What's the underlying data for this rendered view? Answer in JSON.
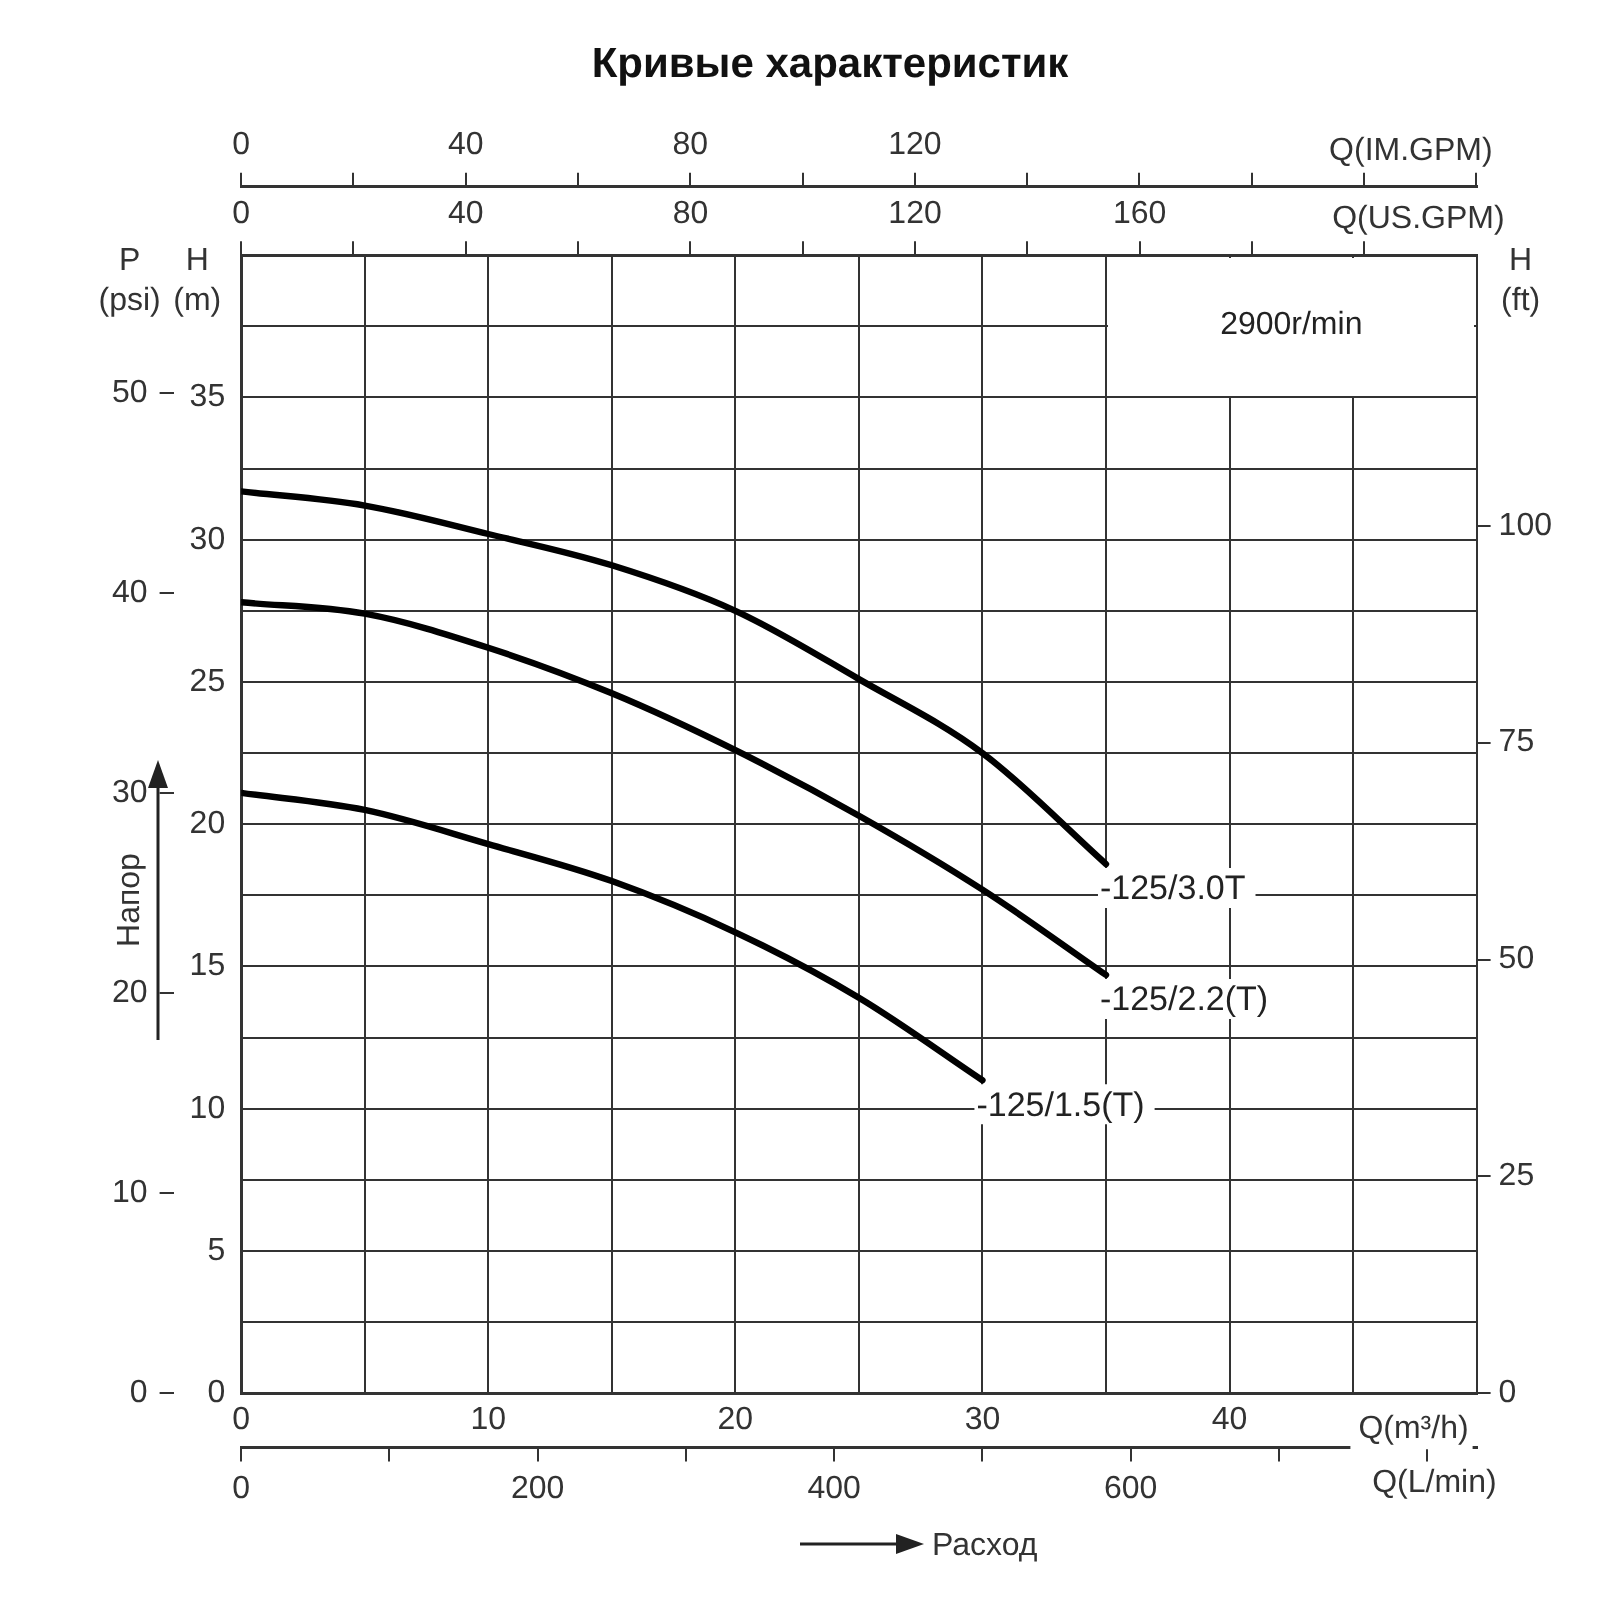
{
  "chart_data": {
    "type": "line",
    "title": "Кривые характеристик",
    "xlabel": "Q(m³/h)",
    "x2label": "Q(US.GPM)",
    "ylabel": "H\n(m)",
    "y2label": "H\n(ft)",
    "y3label": "P\n(psi)",
    "annotations": [
      "2900r/min",
      "Напор",
      "Расход",
      "Q(IM.GPM)",
      "0",
      "40",
      "80",
      "120",
      "Q(L/min)",
      "0",
      "200",
      "400",
      "600"
    ],
    "xlim": [
      0,
      50
    ],
    "xticks": [
      0,
      {
        "value": 5,
        "label": null
      },
      10,
      {
        "value": 15,
        "label": null
      },
      20,
      {
        "value": 25,
        "label": null
      },
      30,
      {
        "value": 35,
        "label": null
      },
      40,
      {
        "value": 45,
        "label": null
      },
      {
        "value": 50,
        "label": null
      }
    ],
    "x2lim": [
      0,
      220
    ],
    "x2ticks": [
      0,
      {
        "value": 20,
        "label": null
      },
      40,
      {
        "value": 60,
        "label": null
      },
      80,
      {
        "value": 100,
        "label": null
      },
      120,
      {
        "value": 140,
        "label": null
      },
      160,
      {
        "value": 180,
        "label": null
      },
      {
        "value": 200,
        "label": null
      }
    ],
    "ylim": [
      0,
      40
    ],
    "yticks": [
      0,
      {
        "value": 2.5,
        "label": null
      },
      5,
      {
        "value": 7.5,
        "label": null
      },
      10,
      {
        "value": 12.5,
        "label": null
      },
      15,
      {
        "value": 17.5,
        "label": null
      },
      20,
      {
        "value": 22.5,
        "label": null
      },
      25,
      {
        "value": 27.5,
        "label": null
      },
      30,
      {
        "value": 32.5,
        "label": null
      },
      35,
      {
        "value": 37.5,
        "label": null
      },
      {
        "value": 40,
        "label": null
      }
    ],
    "y2lim": [
      0,
      131.2
    ],
    "y2ticks": [
      0,
      25,
      50,
      75,
      100
    ],
    "y3lim": [
      0,
      56.9
    ],
    "y3ticks": [
      0,
      10,
      20,
      30,
      40,
      50
    ],
    "grid": true,
    "legend": false,
    "marker": "none",
    "line_style": "solid",
    "series": [
      {
        "name": "-125/3.0T",
        "color": "#000000",
        "x": [
          0,
          5,
          10,
          15,
          20,
          25,
          30,
          35
        ],
        "values": [
          31.7,
          31.2,
          30.2,
          29.1,
          27.5,
          25.1,
          22.5,
          18.6
        ]
      },
      {
        "name": "-125/2.2(T)",
        "color": "#000000",
        "x": [
          0,
          5,
          10,
          15,
          20,
          25,
          30,
          35
        ],
        "values": [
          27.8,
          27.4,
          26.2,
          24.6,
          22.6,
          20.3,
          17.7,
          14.7
        ]
      },
      {
        "name": "-125/1.5(T)",
        "color": "#000000",
        "x": [
          0,
          5,
          10,
          15,
          20,
          25,
          30
        ],
        "values": [
          21.1,
          20.5,
          19.3,
          18.0,
          16.2,
          13.9,
          11.0
        ]
      }
    ]
  }
}
